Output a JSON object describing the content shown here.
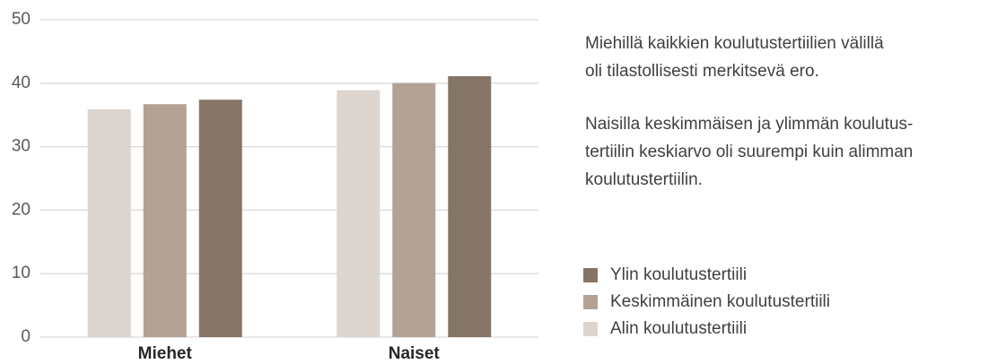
{
  "chart_data": {
    "type": "bar",
    "categories": [
      "Miehet",
      "Naiset"
    ],
    "series": [
      {
        "name": "Alin koulutustertiili",
        "color": "#ddd5cf",
        "values": [
          35.9,
          38.9
        ]
      },
      {
        "name": "Keskimmäinen koulutustertiili",
        "color": "#b3a294",
        "values": [
          36.7,
          40.0
        ]
      },
      {
        "name": "Ylin koulutustertiili",
        "color": "#857567",
        "values": [
          37.4,
          41.1
        ]
      }
    ],
    "ylim": [
      0,
      50
    ],
    "yticks": [
      0,
      10,
      20,
      30,
      40,
      50
    ],
    "grid": true,
    "annotations": [
      [
        "Miehillä kaikkien koulutustertiilien välillä",
        "oli tilastollisesti merkitsevä ero."
      ],
      [
        "Naisilla keskimmäisen ja ylimmän koulutus-",
        "tertiilin keskiarvo oli suurempi kuin alimman",
        "koulutustertiilin."
      ]
    ]
  }
}
